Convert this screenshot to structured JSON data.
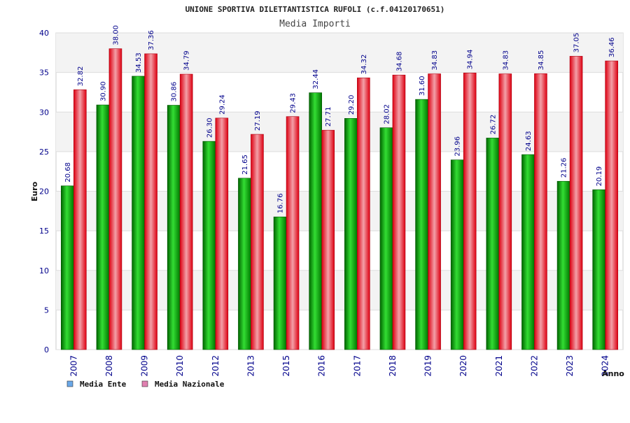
{
  "chart_data": {
    "type": "bar",
    "title": "UNIONE SPORTIVA DILETTANTISTICA RUFOLI (c.f.04120170651)",
    "subtitle": "Media Importi",
    "xlabel": "Anno",
    "ylabel": "Euro",
    "ylim": [
      0,
      40
    ],
    "yticks": [
      "0",
      "5",
      "10",
      "15",
      "20",
      "25",
      "30",
      "35",
      "40"
    ],
    "categories": [
      "2007",
      "2008",
      "2009",
      "2010",
      "2012",
      "2013",
      "2015",
      "2016",
      "2017",
      "2018",
      "2019",
      "2020",
      "2021",
      "2022",
      "2023",
      "2024"
    ],
    "series": [
      {
        "name": "Media Ente",
        "color": "#00aa00",
        "values": [
          20.68,
          30.9,
          34.53,
          30.86,
          26.3,
          21.65,
          16.76,
          32.44,
          29.2,
          28.02,
          31.6,
          23.96,
          26.72,
          24.63,
          21.26,
          20.19
        ],
        "labels": [
          "20.68",
          "30.90",
          "34.53",
          "30.86",
          "26.30",
          "21.65",
          "16.76",
          "32.44",
          "29.20",
          "28.02",
          "31.60",
          "23.96",
          "26.72",
          "24.63",
          "21.26",
          "20.19"
        ]
      },
      {
        "name": "Media Nazionale",
        "color": "#ee2233",
        "values": [
          32.82,
          38.0,
          37.36,
          34.79,
          29.24,
          27.19,
          29.43,
          27.71,
          34.32,
          34.68,
          34.83,
          34.94,
          34.83,
          34.85,
          37.05,
          36.46
        ],
        "labels": [
          "32.82",
          "38.00",
          "37.36",
          "34.79",
          "29.24",
          "27.19",
          "29.43",
          "27.71",
          "34.32",
          "34.68",
          "34.83",
          "34.94",
          "34.83",
          "34.85",
          "37.05",
          "36.46"
        ]
      }
    ],
    "legend": {
      "placement": "bottom-left",
      "items": [
        {
          "label": "Media Ente",
          "color": "#6aa8e8"
        },
        {
          "label": "Media Nazionale",
          "color": "#e080b0"
        }
      ]
    },
    "grid": true
  }
}
